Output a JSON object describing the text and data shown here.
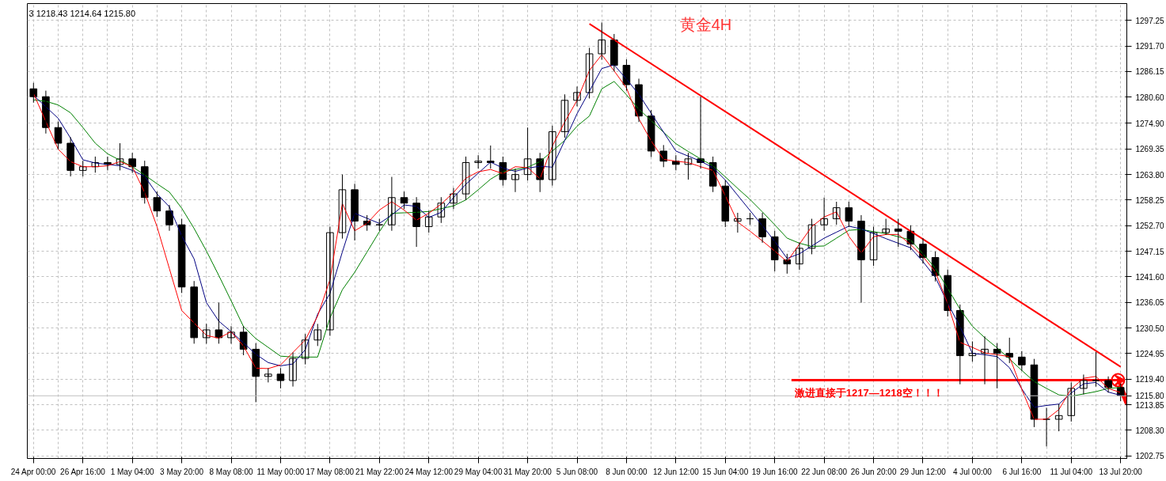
{
  "chart_data": {
    "type": "candlestick",
    "title": "黄金4H",
    "annotations": [
      "3 1218.43 1214.64 1215.80",
      "激进直接于1217—1218空！！！"
    ],
    "categories": [
      "24 Apr 00:00",
      null,
      null,
      null,
      "26 Apr 16:00",
      null,
      null,
      null,
      "1 May 04:00",
      null,
      null,
      null,
      "3 May 20:00",
      null,
      null,
      null,
      "8 May 08:00",
      null,
      null,
      null,
      "11 May 00:00",
      null,
      null,
      null,
      "17 May 08:00",
      null,
      null,
      null,
      "21 May 22:00",
      null,
      null,
      null,
      "24 May 12:00",
      null,
      null,
      null,
      "29 May 04:00",
      null,
      null,
      null,
      "31 May 20:00",
      null,
      null,
      null,
      "5 Jun 08:00",
      null,
      null,
      null,
      "8 Jun 00:00",
      null,
      null,
      null,
      "12 Jun 12:00",
      null,
      null,
      null,
      "15 Jun 04:00",
      null,
      null,
      null,
      "19 Jun 16:00",
      null,
      null,
      null,
      "22 Jun 08:00",
      null,
      null,
      null,
      "26 Jun 20:00",
      null,
      null,
      null,
      "29 Jun 12:00",
      null,
      null,
      null,
      "4 Jul 00:00",
      null,
      null,
      null,
      "6 Jul 16:00",
      null,
      null,
      null,
      "11 Jul 04:00",
      null,
      null,
      null,
      "13 Jul 20:00"
    ],
    "ohlc": [
      [
        1282.4,
        1283.7,
        1279.4,
        1280.7
      ],
      [
        1280.7,
        1282.0,
        1272.7,
        1274.0
      ],
      [
        1274.0,
        1275.3,
        1269.3,
        1270.6
      ],
      [
        1270.6,
        1271.9,
        1263.4,
        1264.7
      ],
      [
        1264.7,
        1266.8,
        1263.4,
        1265.5
      ],
      [
        1265.5,
        1267.7,
        1264.2,
        1266.4
      ],
      [
        1266.4,
        1267.7,
        1264.7,
        1266.0
      ],
      [
        1266.0,
        1270.6,
        1264.7,
        1267.2
      ],
      [
        1267.2,
        1268.5,
        1264.2,
        1265.5
      ],
      [
        1265.5,
        1266.8,
        1257.5,
        1258.8
      ],
      [
        1258.8,
        1260.1,
        1254.6,
        1255.9
      ],
      [
        1255.9,
        1257.2,
        1251.6,
        1252.9
      ],
      [
        1252.9,
        1254.2,
        1238.1,
        1239.4
      ],
      [
        1239.4,
        1240.7,
        1227.1,
        1228.4
      ],
      [
        1228.4,
        1231.4,
        1227.1,
        1230.1
      ],
      [
        1230.1,
        1236.0,
        1227.1,
        1228.4
      ],
      [
        1228.4,
        1230.9,
        1227.1,
        1229.6
      ],
      [
        1229.6,
        1230.9,
        1224.6,
        1225.9
      ],
      [
        1225.9,
        1227.2,
        1214.4,
        1220.0
      ],
      [
        1220.0,
        1221.8,
        1218.7,
        1220.5
      ],
      [
        1220.5,
        1221.8,
        1217.4,
        1219.1
      ],
      [
        1219.1,
        1225.2,
        1217.8,
        1223.9
      ],
      [
        1223.9,
        1229.2,
        1222.6,
        1227.9
      ],
      [
        1227.9,
        1231.4,
        1226.6,
        1230.1
      ],
      [
        1230.1,
        1252.5,
        1228.8,
        1251.2
      ],
      [
        1251.2,
        1263.8,
        1249.9,
        1260.5
      ],
      [
        1260.5,
        1261.8,
        1249.5,
        1253.7
      ],
      [
        1253.7,
        1255.0,
        1251.6,
        1252.9
      ],
      [
        1252.9,
        1254.2,
        1251.6,
        1252.9
      ],
      [
        1252.9,
        1263.3,
        1251.6,
        1258.8
      ],
      [
        1258.8,
        1260.1,
        1256.3,
        1257.6
      ],
      [
        1257.6,
        1258.9,
        1248.1,
        1252.5
      ],
      [
        1252.5,
        1255.9,
        1251.2,
        1254.6
      ],
      [
        1254.6,
        1258.9,
        1253.3,
        1257.6
      ],
      [
        1257.6,
        1260.9,
        1256.3,
        1259.6
      ],
      [
        1259.6,
        1267.7,
        1258.3,
        1266.4
      ],
      [
        1266.4,
        1268.0,
        1265.1,
        1266.7
      ],
      [
        1266.7,
        1270.1,
        1265.1,
        1266.4
      ],
      [
        1266.4,
        1267.7,
        1261.4,
        1262.7
      ],
      [
        1262.7,
        1265.1,
        1260.0,
        1263.8
      ],
      [
        1263.8,
        1274.0,
        1262.5,
        1267.2
      ],
      [
        1267.2,
        1268.5,
        1260.0,
        1262.7
      ],
      [
        1262.7,
        1274.4,
        1261.4,
        1273.1
      ],
      [
        1273.1,
        1281.2,
        1271.8,
        1279.9
      ],
      [
        1279.9,
        1282.9,
        1278.6,
        1281.6
      ],
      [
        1281.6,
        1291.3,
        1280.3,
        1290.0
      ],
      [
        1290.0,
        1296.8,
        1288.7,
        1293.0
      ],
      [
        1293.0,
        1294.3,
        1286.2,
        1287.5
      ],
      [
        1287.5,
        1288.8,
        1282.0,
        1283.3
      ],
      [
        1283.3,
        1284.6,
        1275.2,
        1276.5
      ],
      [
        1276.5,
        1277.8,
        1267.6,
        1268.9
      ],
      [
        1268.9,
        1270.2,
        1265.4,
        1266.7
      ],
      [
        1266.7,
        1268.0,
        1264.7,
        1266.0
      ],
      [
        1266.0,
        1268.5,
        1262.7,
        1267.2
      ],
      [
        1267.2,
        1280.7,
        1265.1,
        1266.4
      ],
      [
        1266.4,
        1267.7,
        1260.0,
        1261.3
      ],
      [
        1261.3,
        1262.6,
        1252.4,
        1253.7
      ],
      [
        1253.7,
        1255.5,
        1251.2,
        1254.2
      ],
      [
        1254.2,
        1255.5,
        1252.9,
        1254.2
      ],
      [
        1254.2,
        1255.5,
        1249.0,
        1250.3
      ],
      [
        1250.3,
        1251.6,
        1242.8,
        1245.3
      ],
      [
        1245.3,
        1246.6,
        1242.3,
        1244.4
      ],
      [
        1244.4,
        1249.1,
        1243.1,
        1247.8
      ],
      [
        1247.8,
        1254.2,
        1246.5,
        1252.9
      ],
      [
        1252.9,
        1258.8,
        1251.6,
        1254.2
      ],
      [
        1254.2,
        1257.9,
        1252.9,
        1256.6
      ],
      [
        1256.6,
        1257.9,
        1252.4,
        1253.7
      ],
      [
        1253.7,
        1255.0,
        1236.0,
        1245.3
      ],
      [
        1245.3,
        1252.5,
        1244.0,
        1251.2
      ],
      [
        1251.2,
        1254.2,
        1250.7,
        1252.0
      ],
      [
        1252.0,
        1254.2,
        1248.1,
        1251.5
      ],
      [
        1251.5,
        1252.8,
        1247.4,
        1248.7
      ],
      [
        1248.7,
        1250.0,
        1244.5,
        1245.8
      ],
      [
        1245.8,
        1247.1,
        1240.6,
        1241.9
      ],
      [
        1241.9,
        1243.2,
        1233.0,
        1234.3
      ],
      [
        1234.3,
        1235.6,
        1218.3,
        1224.5
      ],
      [
        1224.5,
        1227.6,
        1223.2,
        1225.0
      ],
      [
        1225.0,
        1228.7,
        1218.3,
        1225.9
      ],
      [
        1225.9,
        1227.2,
        1217.4,
        1225.0
      ],
      [
        1225.0,
        1228.4,
        1222.9,
        1224.2
      ],
      [
        1224.2,
        1225.5,
        1221.2,
        1222.5
      ],
      [
        1222.5,
        1223.8,
        1209.0,
        1210.7
      ],
      [
        1210.7,
        1213.2,
        1204.8,
        1210.7
      ],
      [
        1210.7,
        1214.0,
        1208.1,
        1211.5
      ],
      [
        1211.5,
        1218.7,
        1210.2,
        1217.4
      ],
      [
        1217.4,
        1220.4,
        1216.1,
        1219.1
      ],
      [
        1219.1,
        1225.3,
        1217.8,
        1219.1
      ],
      [
        1219.1,
        1220.0,
        1216.5,
        1217.6
      ],
      [
        1217.6,
        1218.43,
        1214.64,
        1215.8
      ]
    ],
    "series": [
      {
        "type": "line",
        "color": "#008000",
        "values": [
          1280.0,
          1279.7,
          1278.9,
          1277.2,
          1274.0,
          1270.6,
          1268.3,
          1266.9,
          1265.5,
          1263.7,
          1261.8,
          1260.0,
          1256.5,
          1252.1,
          1247.2,
          1241.9,
          1236.4,
          1230.8,
          1228.2,
          1226.3,
          1224.4,
          1224.2,
          1224.2,
          1224.2,
          1232.7,
          1238.8,
          1242.6,
          1247.0,
          1251.4,
          1255.4,
          1255.5,
          1255.6,
          1255.8,
          1256.4,
          1257.0,
          1258.3,
          1260.5,
          1262.8,
          1264.4,
          1264.9,
          1265.4,
          1266.6,
          1268.9,
          1271.2,
          1274.3,
          1276.5,
          1282.4,
          1284.0,
          1281.1,
          1278.0,
          1275.5,
          1273.0,
          1270.5,
          1268.8,
          1267.2,
          1265.7,
          1263.3,
          1260.8,
          1258.4,
          1255.7,
          1252.9,
          1250.0,
          1248.9,
          1248.2,
          1248.3,
          1250.0,
          1251.7,
          1251.9,
          1251.4,
          1251.0,
          1250.3,
          1249.6,
          1246.6,
          1243.5,
          1239.1,
          1234.6,
          1230.9,
          1228.4,
          1226.2,
          1223.8,
          1221.3,
          1218.9,
          1217.4,
          1216.0,
          1215.7,
          1216.2,
          1216.7,
          1217.4,
          1217.6
        ]
      },
      {
        "type": "line",
        "color": "#000080",
        "values": [
          1281.0,
          1278.5,
          1276.0,
          1271.7,
          1267.0,
          1266.3,
          1266.0,
          1265.7,
          1264.7,
          1263.4,
          1259.6,
          1256.8,
          1250.5,
          1245.5,
          1236.0,
          1232.0,
          1229.7,
          1227.3,
          1224.8,
          1223.0,
          1222.3,
          1222.7,
          1225.8,
          1233.5,
          1238.0,
          1247.0,
          1255.4,
          1254.3,
          1253.2,
          1255.0,
          1257.2,
          1256.9,
          1254.5,
          1255.6,
          1258.8,
          1261.7,
          1264.1,
          1266.5,
          1265.2,
          1264.5,
          1265.2,
          1265.6,
          1265.4,
          1271.2,
          1277.0,
          1281.9,
          1286.8,
          1287.6,
          1284.5,
          1281.2,
          1277.1,
          1273.0,
          1268.9,
          1267.8,
          1266.7,
          1265.3,
          1262.6,
          1259.3,
          1256.0,
          1252.7,
          1249.3,
          1245.6,
          1246.6,
          1248.3,
          1250.0,
          1251.3,
          1252.6,
          1252.0,
          1251.0,
          1249.9,
          1248.9,
          1247.9,
          1244.9,
          1241.5,
          1235.9,
          1230.8,
          1225.0,
          1224.7,
          1224.3,
          1221.9,
          1217.3,
          1213.3,
          1213.7,
          1214.0,
          1216.4,
          1218.4,
          1218.7,
          1216.6,
          1215.9
        ]
      },
      {
        "type": "line",
        "color": "#ff0000",
        "values": [
          1281.4,
          1275.3,
          1269.3,
          1266.6,
          1265.5,
          1265.5,
          1265.7,
          1266.6,
          1265.5,
          1259.9,
          1252.5,
          1243.4,
          1234.3,
          1231.6,
          1228.9,
          1228.3,
          1229.7,
          1226.6,
          1221.8,
          1221.7,
          1222.5,
          1225.2,
          1227.9,
          1233.1,
          1241.0,
          1257.5,
          1251.6,
          1253.2,
          1256.1,
          1257.9,
          1256.1,
          1253.9,
          1255.4,
          1257.4,
          1259.9,
          1263.0,
          1264.4,
          1264.9,
          1264.0,
          1265.5,
          1265.3,
          1262.9,
          1270.0,
          1275.2,
          1279.9,
          1286.4,
          1289.8,
          1286.3,
          1282.6,
          1275.9,
          1271.1,
          1267.1,
          1266.7,
          1266.4,
          1265.5,
          1264.7,
          1259.2,
          1253.5,
          1251.5,
          1249.4,
          1247.2,
          1244.9,
          1248.7,
          1252.5,
          1254.6,
          1255.7,
          1250.4,
          1246.8,
          1250.3,
          1250.8,
          1250.8,
          1248.6,
          1246.0,
          1242.7,
          1235.8,
          1227.4,
          1226.3,
          1225.1,
          1224.7,
          1224.3,
          1217.2,
          1210.7,
          1210.7,
          1212.8,
          1217.3,
          1219.6,
          1220.0,
          1217.4,
          1216.5
        ]
      },
      {
        "type": "line",
        "color": "#ff0000",
        "values": [
          null,
          null,
          null,
          null,
          null,
          null,
          null,
          null,
          null,
          null,
          null,
          null,
          null,
          null,
          null,
          null,
          null,
          null,
          null,
          null,
          null,
          null,
          null,
          null,
          null,
          null,
          null,
          null,
          null,
          null,
          null,
          null,
          null,
          null,
          null,
          null,
          null,
          null,
          null,
          null,
          null,
          null,
          null,
          null,
          null,
          1296.5,
          null,
          null,
          null,
          null,
          null,
          null,
          null,
          null,
          null,
          null,
          null,
          null,
          null,
          null,
          null,
          null,
          null,
          null,
          null,
          null,
          null,
          null,
          null,
          null,
          null,
          null,
          null,
          null,
          null,
          null,
          null,
          null,
          null,
          null,
          null,
          null,
          null,
          null,
          null,
          null,
          null,
          null,
          1222.1
        ]
      }
    ],
    "ref_lines": [
      {
        "axis": "y",
        "value": 1215.8,
        "label": "1215.80",
        "color": "#c0c0c0"
      }
    ],
    "ylim": [
      1202.2,
      1300.9
    ],
    "yticks": [
      1297.25,
      {
        "value": 1291.7,
        "label": "1291.70"
      },
      1286.15,
      {
        "value": 1280.6,
        "label": "1280.60"
      },
      {
        "value": 1274.9,
        "label": "1274.90"
      },
      1269.35,
      {
        "value": 1263.8,
        "label": "1263.80"
      },
      1258.25,
      {
        "value": 1252.7,
        "label": "1252.70"
      },
      1247.15,
      {
        "value": 1241.6,
        "label": "1241.60"
      },
      1236.05,
      {
        "value": 1230.5,
        "label": "1230.50"
      },
      1224.95,
      {
        "value": 1219.4,
        "label": "1219.40"
      },
      1213.85,
      {
        "value": 1208.3,
        "label": "1208.30"
      },
      1202.75
    ],
    "grid": true
  }
}
